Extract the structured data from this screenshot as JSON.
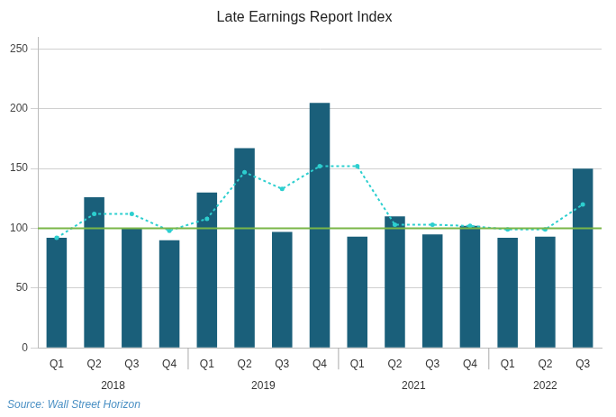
{
  "chart_data": {
    "type": "bar",
    "title": "Late Earnings Report Index",
    "source": "Source: Wall Street Horizon",
    "categories": [
      "Q1",
      "Q2",
      "Q3",
      "Q4",
      "Q1",
      "Q2",
      "Q3",
      "Q4",
      "Q1",
      "Q2",
      "Q3",
      "Q4",
      "Q1",
      "Q2",
      "Q3"
    ],
    "groups": [
      {
        "label": "2018",
        "categories": [
          "Q1",
          "Q2",
          "Q3",
          "Q4"
        ]
      },
      {
        "label": "2019",
        "categories": [
          "Q1",
          "Q2",
          "Q3",
          "Q4"
        ]
      },
      {
        "label": "2021",
        "categories": [
          "Q1",
          "Q2",
          "Q3",
          "Q4"
        ]
      },
      {
        "label": "2022",
        "categories": [
          "Q1",
          "Q2",
          "Q3"
        ]
      }
    ],
    "series": [
      {
        "type": "bar",
        "color": "#1a5f7a",
        "values": [
          92,
          126,
          100,
          90,
          130,
          167,
          97,
          205,
          93,
          110,
          95,
          102,
          92,
          93,
          150
        ]
      },
      {
        "type": "line",
        "color": "#2dcfcf",
        "line_style": "dotted",
        "marker": "circle",
        "values": [
          92,
          112,
          112,
          98,
          108,
          147,
          133,
          152,
          152,
          103,
          103,
          102,
          99,
          99,
          120
        ]
      }
    ],
    "hlines": [
      {
        "value": 100,
        "color": "#7ab648"
      }
    ],
    "ylim": [
      0,
      260
    ],
    "yticks": [
      0,
      50,
      100,
      150,
      200,
      250
    ],
    "grid": true
  }
}
